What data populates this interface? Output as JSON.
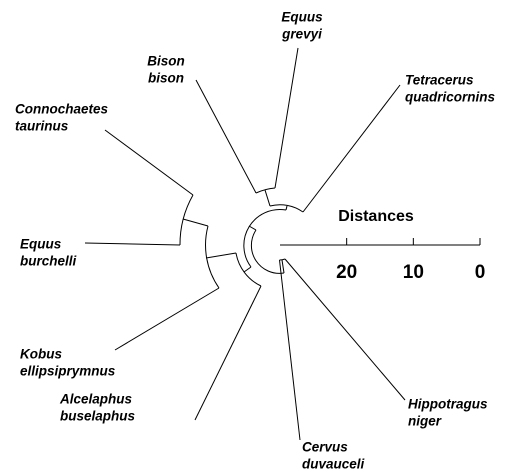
{
  "leaves": [
    {
      "lines": [
        "Equus",
        "grevyi"
      ]
    },
    {
      "lines": [
        "Bison",
        "bison"
      ]
    },
    {
      "lines": [
        "Tetracerus",
        "quadricornins"
      ]
    },
    {
      "lines": [
        "Connochaetes",
        "taurinus"
      ]
    },
    {
      "lines": [
        "Equus",
        "burchelli"
      ]
    },
    {
      "lines": [
        "Kobus",
        "ellipsiprymnus"
      ]
    },
    {
      "lines": [
        "Alcelaphus",
        "buselaphus"
      ]
    },
    {
      "lines": [
        "Cervus",
        "duvauceli"
      ]
    },
    {
      "lines": [
        "Hippotragus",
        "niger"
      ]
    }
  ],
  "scale": {
    "title": "Distances",
    "xlim": [
      30,
      0
    ],
    "xticks": [
      20,
      10,
      0
    ]
  }
}
